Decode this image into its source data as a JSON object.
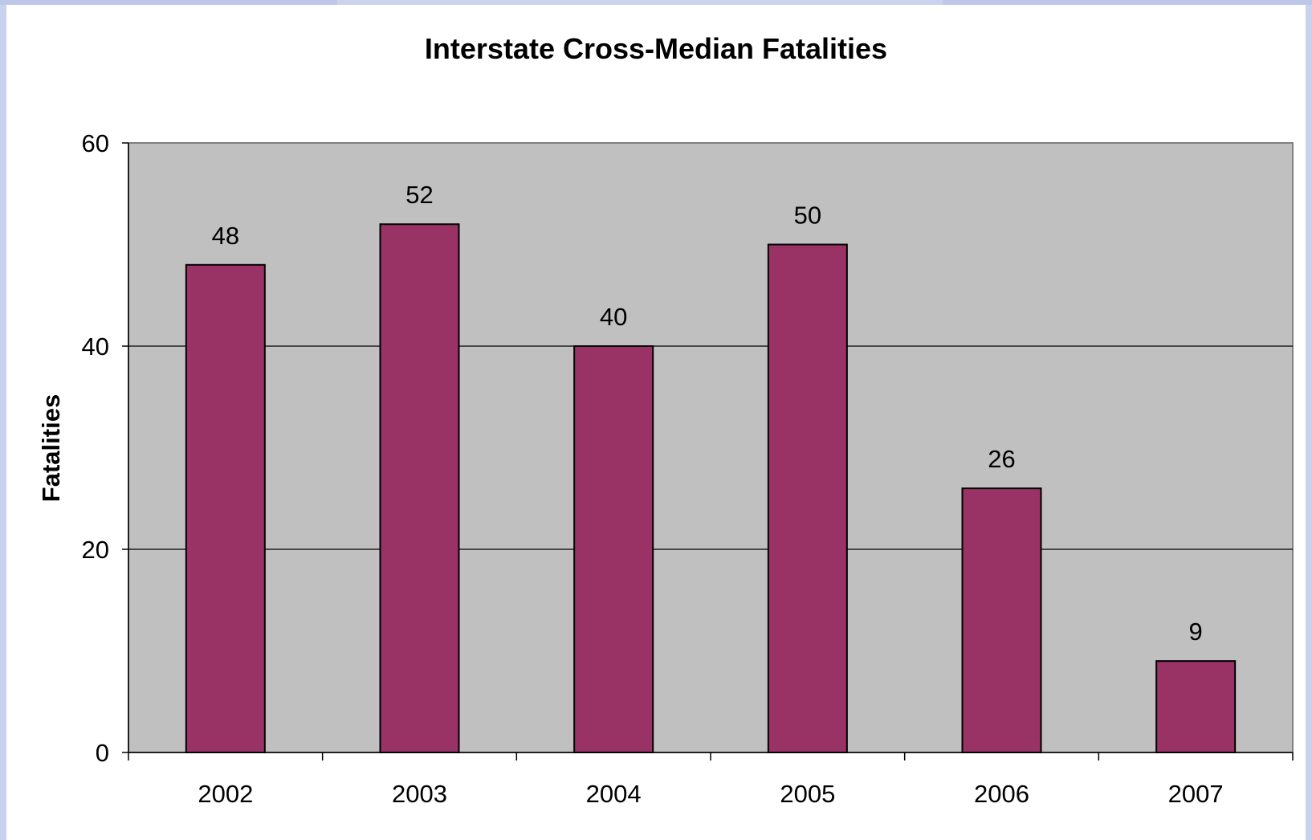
{
  "chart_data": {
    "type": "bar",
    "title": "Interstate Cross-Median Fatalities",
    "xlabel": "",
    "ylabel": "Fatalities",
    "categories": [
      "2002",
      "2003",
      "2004",
      "2005",
      "2006",
      "2007"
    ],
    "values": [
      48,
      52,
      40,
      50,
      26,
      9
    ],
    "data_labels": [
      "48",
      "52",
      "40",
      "50",
      "26",
      "9"
    ],
    "ylim": [
      0,
      60
    ],
    "yticks": [
      "0",
      "20",
      "40",
      "60"
    ],
    "grid": true,
    "legend": "none",
    "colors": {
      "bar": "#993366",
      "plot_background": "#c0c0c0",
      "gridline": "#000000",
      "frame_border": "#c9d3ee"
    }
  }
}
